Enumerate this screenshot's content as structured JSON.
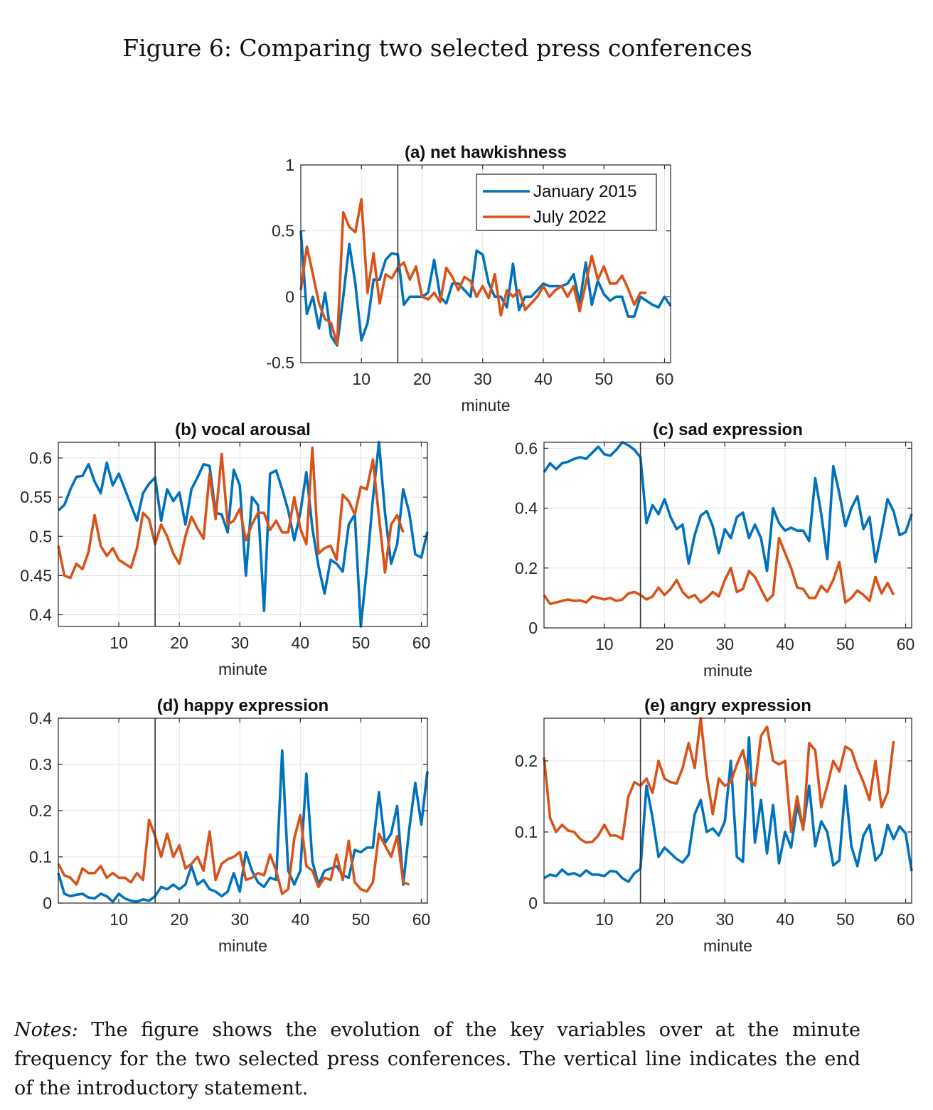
{
  "figure": {
    "title": "Figure 6: Comparing two selected press conferences",
    "notes_lead": "Notes:",
    "notes_text": " The figure shows the evolution of the key variables over at the minute frequency for the two selected press conferences. The vertical line indicates the end of the introductory statement."
  },
  "colors": {
    "series_1": "#0072BD",
    "series_2": "#D95319",
    "grid": "#e3e3e3",
    "axis": "#262626"
  },
  "chart_data": [
    {
      "id": "a",
      "type": "line",
      "title": "(a) net hawkishness",
      "xlabel": "minute",
      "xlim": [
        0,
        61
      ],
      "ylim": [
        -0.5,
        1
      ],
      "xticks": [
        10,
        20,
        30,
        40,
        50,
        60
      ],
      "yticks": [
        -0.5,
        0,
        0.5,
        1
      ],
      "ytick_labels": [
        "-0.5",
        "0",
        "0.5",
        "1"
      ],
      "vline": 16,
      "grid": true,
      "legend": {
        "position": "top-right",
        "entries": [
          "January 2015",
          "July 2022"
        ]
      },
      "series": [
        {
          "name": "January 2015",
          "x_start": 0,
          "values": [
            0.5,
            -0.13,
            0,
            -0.24,
            0.03,
            -0.3,
            -0.37,
            0.0,
            0.4,
            0.1,
            -0.33,
            -0.2,
            0.13,
            0.13,
            0.28,
            0.33,
            0.32,
            -0.06,
            0.0,
            0.0,
            0.0,
            0.03,
            0.28,
            0.0,
            -0.05,
            0.1,
            0.1,
            0.05,
            0.0,
            0.35,
            0.32,
            0.1,
            0.0,
            0.0,
            -0.08,
            0.25,
            -0.1,
            0.0,
            0.0,
            0.05,
            0.1,
            0.08,
            0.08,
            0.08,
            0.1,
            0.17,
            -0.05,
            0.26,
            -0.06,
            0.12,
            0.02,
            -0.03,
            0.0,
            0.0,
            -0.15,
            -0.15,
            0.0,
            -0.03,
            -0.06,
            -0.08,
            0.0,
            -0.07
          ]
        },
        {
          "name": "July 2022",
          "x_start": 0,
          "values": [
            0.05,
            0.38,
            0.17,
            -0.05,
            -0.17,
            -0.2,
            -0.36,
            0.64,
            0.53,
            0.49,
            0.74,
            0.03,
            0.33,
            -0.05,
            0.17,
            0.14,
            0.22,
            0.26,
            0.13,
            0.23,
            0.0,
            -0.02,
            0.03,
            -0.04,
            0.22,
            0.15,
            0.05,
            0.15,
            0.12,
            0.0,
            0.08,
            -0.01,
            0.17,
            -0.14,
            0.05,
            0.0,
            0.05,
            -0.1,
            -0.05,
            0.0,
            0.08,
            0.0,
            0.05,
            0.08,
            0.0,
            0.08,
            -0.11,
            0.1,
            0.31,
            0.13,
            0.23,
            0.1,
            0.1,
            0.16,
            0.06,
            -0.06,
            0.03,
            0.03
          ]
        }
      ]
    },
    {
      "id": "b",
      "type": "line",
      "title": "(b) vocal arousal",
      "xlabel": "minute",
      "xlim": [
        0,
        61
      ],
      "ylim": [
        0.385,
        0.62
      ],
      "xticks": [
        10,
        20,
        30,
        40,
        50,
        60
      ],
      "yticks": [
        0.4,
        0.45,
        0.5,
        0.55,
        0.6
      ],
      "ytick_labels": [
        "0.4",
        "0.45",
        "0.5",
        "0.55",
        "0.6"
      ],
      "vline": 16,
      "grid": true,
      "series": [
        {
          "name": "January 2015",
          "x_start": 0,
          "values": [
            0.533,
            0.54,
            0.56,
            0.576,
            0.577,
            0.592,
            0.57,
            0.555,
            0.594,
            0.565,
            0.58,
            0.56,
            0.54,
            0.52,
            0.555,
            0.567,
            0.575,
            0.52,
            0.56,
            0.545,
            0.556,
            0.515,
            0.56,
            0.575,
            0.592,
            0.59,
            0.53,
            0.528,
            0.505,
            0.585,
            0.565,
            0.45,
            0.55,
            0.54,
            0.405,
            0.58,
            0.584,
            0.56,
            0.533,
            0.495,
            0.53,
            0.582,
            0.51,
            0.462,
            0.427,
            0.47,
            0.465,
            0.455,
            0.515,
            0.528,
            0.385,
            0.46,
            0.548,
            0.62,
            0.53,
            0.465,
            0.49,
            0.56,
            0.53,
            0.477,
            0.473,
            0.506
          ]
        },
        {
          "name": "July 2022",
          "x_start": 0,
          "values": [
            0.488,
            0.45,
            0.447,
            0.465,
            0.458,
            0.48,
            0.527,
            0.488,
            0.475,
            0.485,
            0.47,
            0.465,
            0.46,
            0.485,
            0.53,
            0.522,
            0.49,
            0.515,
            0.5,
            0.478,
            0.465,
            0.5,
            0.525,
            0.51,
            0.497,
            0.58,
            0.522,
            0.605,
            0.515,
            0.52,
            0.535,
            0.495,
            0.515,
            0.53,
            0.53,
            0.508,
            0.52,
            0.505,
            0.505,
            0.55,
            0.51,
            0.49,
            0.613,
            0.478,
            0.485,
            0.488,
            0.47,
            0.553,
            0.545,
            0.528,
            0.563,
            0.56,
            0.598,
            0.525,
            0.454,
            0.515,
            0.527,
            0.505
          ]
        }
      ]
    },
    {
      "id": "c",
      "type": "line",
      "title": "(c) sad expression",
      "xlabel": "minute",
      "xlim": [
        0,
        61
      ],
      "ylim": [
        0,
        0.62
      ],
      "xticks": [
        10,
        20,
        30,
        40,
        50,
        60
      ],
      "yticks": [
        0,
        0.2,
        0.4,
        0.6
      ],
      "ytick_labels": [
        "0",
        "0.2",
        "0.4",
        "0.6"
      ],
      "vline": 16,
      "grid": true,
      "series": [
        {
          "name": "January 2015",
          "x_start": 0,
          "values": [
            0.52,
            0.55,
            0.53,
            0.55,
            0.555,
            0.565,
            0.57,
            0.565,
            0.585,
            0.605,
            0.58,
            0.575,
            0.595,
            0.62,
            0.61,
            0.595,
            0.57,
            0.35,
            0.41,
            0.38,
            0.43,
            0.37,
            0.33,
            0.345,
            0.215,
            0.31,
            0.375,
            0.39,
            0.34,
            0.25,
            0.33,
            0.3,
            0.37,
            0.385,
            0.3,
            0.345,
            0.3,
            0.19,
            0.4,
            0.35,
            0.325,
            0.335,
            0.325,
            0.325,
            0.29,
            0.5,
            0.38,
            0.23,
            0.54,
            0.45,
            0.34,
            0.4,
            0.44,
            0.33,
            0.37,
            0.22,
            0.32,
            0.43,
            0.39,
            0.31,
            0.32,
            0.38
          ]
        },
        {
          "name": "July 2022",
          "x_start": 0,
          "values": [
            0.11,
            0.08,
            0.085,
            0.09,
            0.095,
            0.09,
            0.092,
            0.085,
            0.105,
            0.1,
            0.095,
            0.1,
            0.09,
            0.095,
            0.115,
            0.12,
            0.11,
            0.095,
            0.105,
            0.135,
            0.11,
            0.13,
            0.16,
            0.12,
            0.1,
            0.11,
            0.085,
            0.1,
            0.12,
            0.105,
            0.16,
            0.2,
            0.12,
            0.13,
            0.19,
            0.17,
            0.13,
            0.09,
            0.11,
            0.3,
            0.25,
            0.2,
            0.135,
            0.13,
            0.1,
            0.1,
            0.14,
            0.12,
            0.16,
            0.22,
            0.085,
            0.1,
            0.125,
            0.11,
            0.09,
            0.17,
            0.115,
            0.15,
            0.11
          ]
        }
      ]
    },
    {
      "id": "d",
      "type": "line",
      "title": "(d) happy expression",
      "xlabel": "minute",
      "xlim": [
        0,
        61
      ],
      "ylim": [
        0,
        0.4
      ],
      "xticks": [
        10,
        20,
        30,
        40,
        50,
        60
      ],
      "yticks": [
        0,
        0.1,
        0.2,
        0.3,
        0.4
      ],
      "ytick_labels": [
        "0",
        "0.1",
        "0.2",
        "0.3",
        "0.4"
      ],
      "vline": 16,
      "grid": true,
      "series": [
        {
          "name": "January 2015",
          "x_start": 0,
          "values": [
            0.065,
            0.02,
            0.015,
            0.018,
            0.02,
            0.012,
            0.01,
            0.02,
            0.015,
            0.003,
            0.02,
            0.01,
            0.005,
            0.003,
            0.008,
            0.005,
            0.015,
            0.035,
            0.03,
            0.04,
            0.03,
            0.04,
            0.08,
            0.04,
            0.05,
            0.03,
            0.025,
            0.015,
            0.025,
            0.065,
            0.025,
            0.11,
            0.07,
            0.045,
            0.035,
            0.055,
            0.05,
            0.33,
            0.07,
            0.04,
            0.07,
            0.28,
            0.09,
            0.04,
            0.07,
            0.075,
            0.08,
            0.06,
            0.055,
            0.115,
            0.11,
            0.12,
            0.12,
            0.24,
            0.13,
            0.15,
            0.21,
            0.04,
            0.16,
            0.26,
            0.17,
            0.285
          ]
        },
        {
          "name": "July 2022",
          "x_start": 0,
          "values": [
            0.085,
            0.06,
            0.055,
            0.04,
            0.075,
            0.065,
            0.065,
            0.08,
            0.055,
            0.065,
            0.055,
            0.055,
            0.045,
            0.065,
            0.05,
            0.18,
            0.145,
            0.1,
            0.15,
            0.1,
            0.125,
            0.075,
            0.085,
            0.1,
            0.07,
            0.155,
            0.05,
            0.085,
            0.095,
            0.1,
            0.11,
            0.05,
            0.055,
            0.065,
            0.06,
            0.105,
            0.07,
            0.02,
            0.03,
            0.14,
            0.19,
            0.08,
            0.07,
            0.035,
            0.055,
            0.05,
            0.105,
            0.05,
            0.135,
            0.045,
            0.03,
            0.025,
            0.045,
            0.15,
            0.125,
            0.1,
            0.145,
            0.045,
            0.04
          ]
        }
      ]
    },
    {
      "id": "e",
      "type": "line",
      "title": "(e) angry expression",
      "xlabel": "minute",
      "xlim": [
        0,
        61
      ],
      "ylim": [
        0,
        0.26
      ],
      "xticks": [
        10,
        20,
        30,
        40,
        50,
        60
      ],
      "yticks": [
        0,
        0.1,
        0.2
      ],
      "ytick_labels": [
        "0",
        "0.1",
        "0.2"
      ],
      "vline": 16,
      "grid": true,
      "series": [
        {
          "name": "January 2015",
          "x_start": 0,
          "values": [
            0.035,
            0.04,
            0.038,
            0.047,
            0.04,
            0.042,
            0.038,
            0.046,
            0.04,
            0.04,
            0.038,
            0.045,
            0.044,
            0.035,
            0.03,
            0.042,
            0.048,
            0.165,
            0.12,
            0.065,
            0.078,
            0.07,
            0.062,
            0.057,
            0.068,
            0.125,
            0.145,
            0.1,
            0.105,
            0.095,
            0.115,
            0.2,
            0.065,
            0.058,
            0.233,
            0.085,
            0.145,
            0.07,
            0.138,
            0.056,
            0.1,
            0.078,
            0.137,
            0.105,
            0.165,
            0.08,
            0.115,
            0.1,
            0.053,
            0.06,
            0.165,
            0.08,
            0.052,
            0.095,
            0.11,
            0.06,
            0.07,
            0.11,
            0.09,
            0.108,
            0.098,
            0.045
          ]
        },
        {
          "name": "July 2022",
          "x_start": 0,
          "values": [
            0.205,
            0.12,
            0.1,
            0.11,
            0.102,
            0.1,
            0.09,
            0.085,
            0.086,
            0.095,
            0.11,
            0.095,
            0.095,
            0.09,
            0.15,
            0.17,
            0.165,
            0.175,
            0.155,
            0.2,
            0.175,
            0.17,
            0.168,
            0.19,
            0.225,
            0.19,
            0.26,
            0.18,
            0.125,
            0.175,
            0.165,
            0.17,
            0.195,
            0.215,
            0.175,
            0.165,
            0.235,
            0.248,
            0.2,
            0.195,
            0.2,
            0.1,
            0.15,
            0.103,
            0.225,
            0.215,
            0.135,
            0.165,
            0.2,
            0.185,
            0.22,
            0.215,
            0.19,
            0.17,
            0.145,
            0.2,
            0.135,
            0.155,
            0.228
          ]
        }
      ]
    }
  ]
}
